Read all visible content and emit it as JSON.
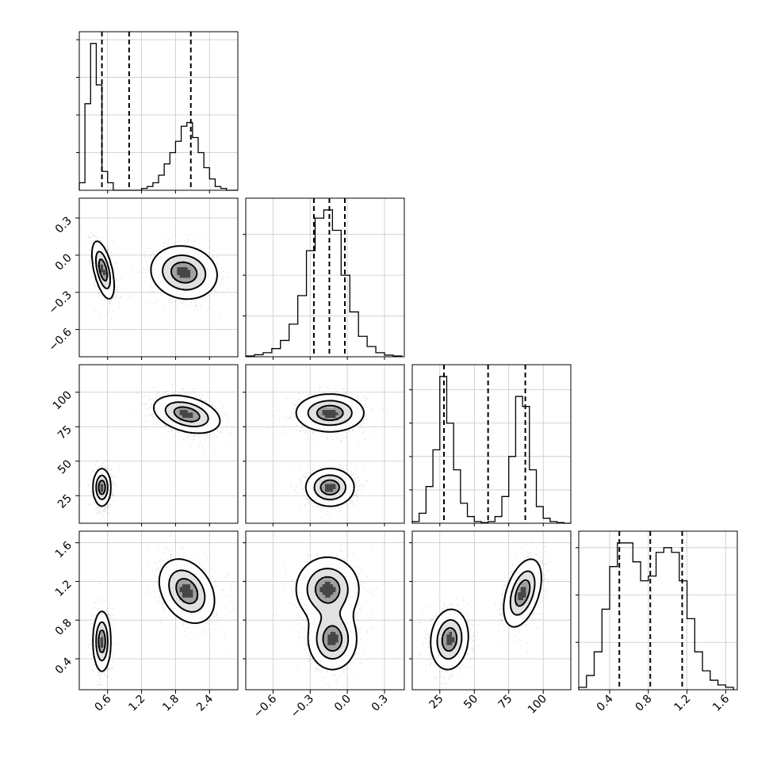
{
  "chart_data": {
    "type": "corner",
    "title": "",
    "parameters": [
      {
        "name": "",
        "range": [
          0.1,
          2.9
        ],
        "ticks": [
          0.6,
          1.2,
          1.8,
          2.4
        ],
        "tick_labels": [
          "0.6",
          "1.2",
          "1.8",
          "2.4"
        ],
        "quantiles": [
          0.5,
          0.98,
          2.07
        ]
      },
      {
        "name": "",
        "range": [
          -0.82,
          0.46
        ],
        "ticks": [
          -0.6,
          -0.3,
          0.0,
          0.3
        ],
        "tick_labels": [
          "−0.6",
          "−0.3",
          "0.0",
          "0.3"
        ],
        "quantiles": [
          -0.27,
          -0.145,
          -0.02
        ]
      },
      {
        "name": "",
        "range": [
          5,
          120
        ],
        "ticks": [
          25,
          50,
          75,
          100
        ],
        "tick_labels": [
          "25",
          "50",
          "75",
          "100"
        ],
        "quantiles": [
          28,
          60,
          87
        ]
      },
      {
        "name": "",
        "range": [
          0.08,
          1.72
        ],
        "ticks": [
          0.4,
          0.8,
          1.2,
          1.6
        ],
        "tick_labels": [
          "0.4",
          "0.8",
          "1.2",
          "1.6"
        ],
        "quantiles": [
          0.5,
          0.82,
          1.15
        ]
      }
    ],
    "histograms": [
      {
        "param": 0,
        "bins": [
          0.1,
          0.2,
          0.3,
          0.4,
          0.5,
          0.6,
          0.7,
          0.8,
          0.9,
          1.0,
          1.1,
          1.2,
          1.3,
          1.4,
          1.5,
          1.6,
          1.7,
          1.8,
          1.9,
          2.0,
          2.1,
          2.2,
          2.3,
          2.4,
          2.5,
          2.6,
          2.7,
          2.8,
          2.9
        ],
        "counts": [
          2,
          23,
          39,
          28,
          5,
          2,
          0,
          0,
          0,
          0,
          0,
          0.5,
          1,
          2,
          4,
          7,
          10,
          13,
          17,
          18,
          14,
          10,
          6,
          3,
          1,
          0.5,
          0,
          0
        ]
      },
      {
        "param": 1,
        "bins": [
          -0.82,
          -0.75,
          -0.68,
          -0.61,
          -0.54,
          -0.47,
          -0.4,
          -0.33,
          -0.26,
          -0.19,
          -0.12,
          -0.05,
          0.02,
          0.09,
          0.16,
          0.23,
          0.3,
          0.37,
          0.44
        ],
        "counts": [
          0.2,
          0.5,
          1,
          2,
          4,
          8,
          15,
          26,
          34,
          36,
          31,
          20,
          11,
          5,
          2.5,
          1,
          0.4,
          0.2
        ]
      },
      {
        "param": 2,
        "bins": [
          5,
          10,
          15,
          20,
          25,
          30,
          35,
          40,
          45,
          50,
          55,
          60,
          65,
          70,
          75,
          80,
          85,
          90,
          95,
          100,
          105,
          110,
          115,
          120
        ],
        "counts": [
          0.5,
          3,
          11,
          22,
          44,
          30,
          16,
          6,
          2,
          0.5,
          0.2,
          0.5,
          2,
          8,
          20,
          38,
          35,
          16,
          5,
          1.5,
          0.5,
          0.2,
          0
        ]
      },
      {
        "param": 3,
        "bins": [
          0.08,
          0.16,
          0.24,
          0.32,
          0.4,
          0.48,
          0.56,
          0.64,
          0.72,
          0.8,
          0.88,
          0.96,
          1.04,
          1.12,
          1.2,
          1.28,
          1.36,
          1.44,
          1.52,
          1.6,
          1.68
        ],
        "counts": [
          0.5,
          3,
          8,
          17,
          26,
          31,
          31,
          27,
          23,
          24,
          29,
          30,
          29,
          23,
          15,
          8,
          4,
          2,
          1,
          0.5
        ]
      }
    ],
    "pairs": [
      {
        "x": 0,
        "y": 1,
        "clusters": [
          {
            "center": [
              0.52,
              -0.12
            ],
            "sd": [
              0.1,
              0.12
            ],
            "rho": -0.55
          },
          {
            "center": [
              1.95,
              -0.14
            ],
            "sd": [
              0.3,
              0.11
            ],
            "rho": -0.1
          }
        ]
      },
      {
        "x": 0,
        "y": 2,
        "clusters": [
          {
            "center": [
              0.5,
              31
            ],
            "sd": [
              0.08,
              7
            ],
            "rho": 0
          },
          {
            "center": [
              2.0,
              84
            ],
            "sd": [
              0.3,
              7
            ],
            "rho": -0.35
          }
        ]
      },
      {
        "x": 1,
        "y": 2,
        "clusters": [
          {
            "center": [
              -0.14,
              85
            ],
            "sd": [
              0.14,
              7
            ],
            "rho": 0
          },
          {
            "center": [
              -0.14,
              31
            ],
            "sd": [
              0.1,
              7
            ],
            "rho": 0
          }
        ]
      },
      {
        "x": 0,
        "y": 3,
        "clusters": [
          {
            "center": [
              0.5,
              0.58
            ],
            "sd": [
              0.08,
              0.16
            ],
            "rho": 0
          },
          {
            "center": [
              2.0,
              1.1
            ],
            "sd": [
              0.25,
              0.17
            ],
            "rho": -0.3
          }
        ]
      },
      {
        "x": 1,
        "y": 3,
        "clusters": [
          {
            "center": [
              -0.16,
              1.12
            ],
            "sd": [
              0.13,
              0.17
            ],
            "rho": 0
          },
          {
            "center": [
              -0.12,
              0.6
            ],
            "sd": [
              0.1,
              0.16
            ],
            "rho": 0
          }
        ]
      },
      {
        "x": 2,
        "y": 3,
        "clusters": [
          {
            "center": [
              32,
              0.6
            ],
            "sd": [
              7,
              0.16
            ],
            "rho": 0.1
          },
          {
            "center": [
              85,
              1.08
            ],
            "sd": [
              7,
              0.18
            ],
            "rho": 0.45
          }
        ]
      }
    ],
    "contour_levels": [
      0.15,
      0.45,
      0.75
    ],
    "grid": true,
    "legend": "none"
  }
}
